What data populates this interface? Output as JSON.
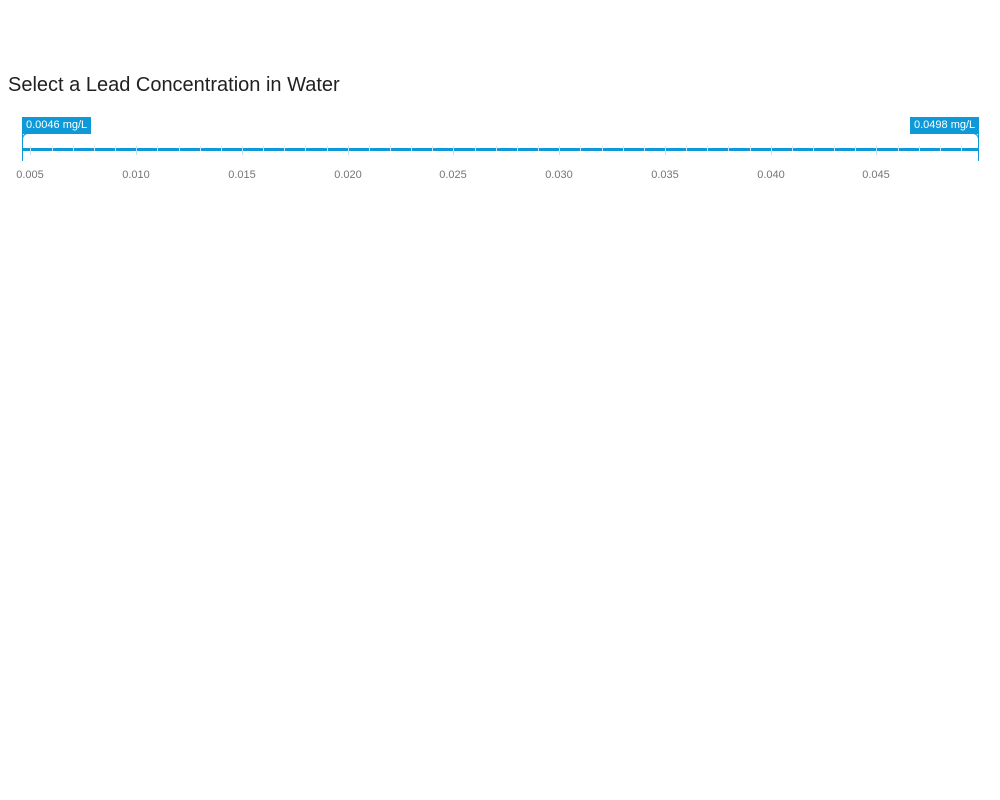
{
  "title": "Select a Lead Concentration in Water",
  "slider": {
    "min": 0.0046,
    "max": 0.0498,
    "unit": "mg/L",
    "low_value": 0.0046,
    "high_value": 0.0498,
    "low_label": "0.0046 mg/L",
    "high_label": "0.0498 mg/L",
    "major_ticks": [
      "0.005",
      "0.010",
      "0.015",
      "0.020",
      "0.025",
      "0.030",
      "0.035",
      "0.040",
      "0.045"
    ],
    "minor_step": 0.001,
    "accent_color": "#0e9ad8"
  }
}
